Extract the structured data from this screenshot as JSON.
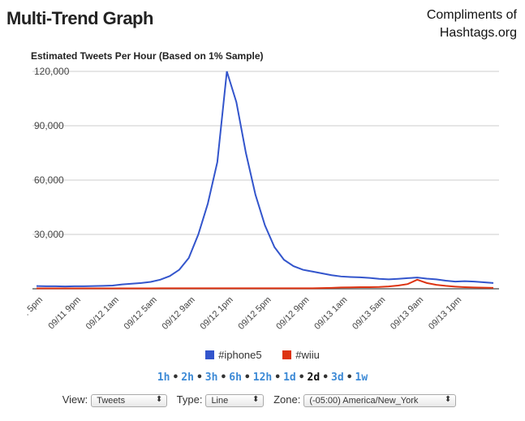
{
  "header": {
    "title": "Multi-Trend Graph",
    "credit_line1": "Compliments of",
    "credit_line2": "Hashtags.org"
  },
  "chart_data": {
    "type": "line",
    "title": "Estimated Tweets Per Hour (Based on 1% Sample)",
    "ylim": [
      0,
      120000
    ],
    "yticks": [
      "30,000",
      "60,000",
      "90,000",
      "120,000"
    ],
    "ytick_values": [
      30000,
      60000,
      90000,
      120000
    ],
    "xtick_labels": [
      ". 5pm",
      "09/11 9pm",
      "09/12 1am",
      "09/12 5am",
      "09/12 9am",
      "09/12 1pm",
      "09/12 5pm",
      "09/12 9pm",
      "09/13 1am",
      "09/13 5am",
      "09/13 9am",
      "09/13 1pm"
    ],
    "xtick_hours": [
      0,
      4,
      8,
      12,
      16,
      20,
      24,
      28,
      32,
      36,
      40,
      44
    ],
    "x_hours_range": [
      0,
      48
    ],
    "grid": true,
    "legend_position": "bottom",
    "series": [
      {
        "name": "#iphone5",
        "color": "#3355cc",
        "values": [
          1500,
          1400,
          1400,
          1300,
          1400,
          1400,
          1500,
          1600,
          1800,
          2400,
          2800,
          3200,
          3800,
          5000,
          7000,
          10500,
          17000,
          30000,
          47000,
          70000,
          120000,
          103000,
          75000,
          52000,
          35000,
          23000,
          16000,
          12500,
          10500,
          9500,
          8500,
          7500,
          6800,
          6500,
          6300,
          6000,
          5500,
          5200,
          5500,
          5900,
          6200,
          5600,
          5200,
          4500,
          4000,
          4200,
          4000,
          3600,
          3200
        ]
      },
      {
        "name": "#wiiu",
        "color": "#dd3311",
        "values": [
          200,
          200,
          200,
          200,
          200,
          200,
          200,
          200,
          200,
          200,
          200,
          200,
          250,
          300,
          300,
          300,
          300,
          300,
          300,
          300,
          300,
          300,
          300,
          300,
          300,
          300,
          300,
          300,
          300,
          300,
          400,
          500,
          700,
          800,
          900,
          900,
          1000,
          1300,
          1800,
          2600,
          5000,
          3200,
          2200,
          1600,
          1200,
          900,
          700,
          600,
          500
        ]
      }
    ]
  },
  "legend": [
    {
      "label": "#iphone5"
    },
    {
      "label": "#wiiu"
    }
  ],
  "ranges": {
    "items": [
      "1h",
      "2h",
      "3h",
      "6h",
      "12h",
      "1d",
      "2d",
      "3d",
      "1w"
    ],
    "selected": "2d"
  },
  "controls": {
    "view_label": "View:",
    "view_value": "Tweets",
    "type_label": "Type:",
    "type_value": "Line",
    "zone_label": "Zone:",
    "zone_value": "(-05:00) America/New_York"
  }
}
